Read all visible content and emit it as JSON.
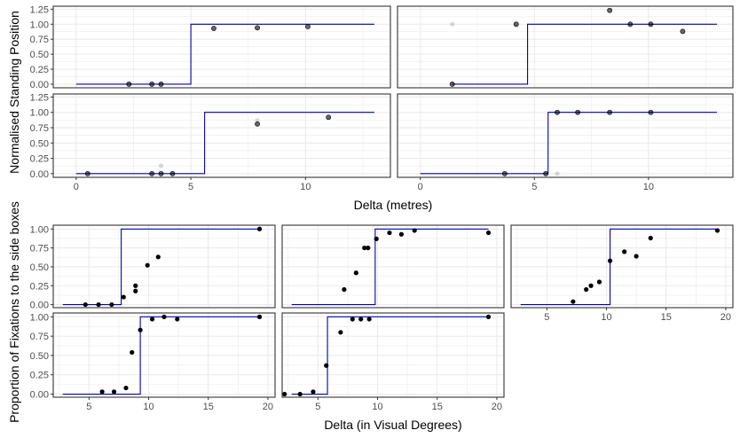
{
  "chart_data": [
    {
      "type": "scatter",
      "figure": "top",
      "xlabel": "Delta (metres)",
      "ylabel": "Normalised Standing Position",
      "xlim": [
        -1,
        13.7
      ],
      "ylim": [
        -0.06,
        1.3
      ],
      "xticks": [
        0,
        5,
        10
      ],
      "yticks": [
        0,
        0.25,
        0.5,
        0.75,
        1.0
      ],
      "ytick_labels": [
        "0.00",
        "0.25",
        "0.50",
        "0.75",
        "1.00",
        "1.25"
      ],
      "ytick_values": [
        0,
        0.25,
        0.5,
        0.75,
        1.0,
        1.25
      ],
      "grid": true,
      "panels": [
        {
          "step_threshold": 5.0,
          "step_xrange": [
            0,
            13
          ],
          "points": [
            {
              "x": 2.3,
              "y": 0
            },
            {
              "x": 3.3,
              "y": 0
            },
            {
              "x": 3.7,
              "y": 0
            },
            {
              "x": 6.0,
              "y": 0.93
            },
            {
              "x": 7.9,
              "y": 0.94
            },
            {
              "x": 10.1,
              "y": 0.96
            }
          ],
          "faint_points": []
        },
        {
          "step_threshold": 4.7,
          "step_xrange": [
            1.4,
            13
          ],
          "points": [
            {
              "x": 1.4,
              "y": 0
            },
            {
              "x": 4.2,
              "y": 1.0
            },
            {
              "x": 8.3,
              "y": 1.23
            },
            {
              "x": 9.2,
              "y": 1.0
            },
            {
              "x": 10.1,
              "y": 1.0
            },
            {
              "x": 11.5,
              "y": 0.88
            }
          ],
          "faint_points": [
            {
              "x": 1.4,
              "y": 1.0
            }
          ]
        },
        {
          "step_threshold": 5.6,
          "step_xrange": [
            0,
            13
          ],
          "points": [
            {
              "x": 0.5,
              "y": 0
            },
            {
              "x": 3.3,
              "y": 0
            },
            {
              "x": 3.7,
              "y": 0
            },
            {
              "x": 4.2,
              "y": 0
            },
            {
              "x": 7.9,
              "y": 0.81
            },
            {
              "x": 11.0,
              "y": 0.92
            }
          ],
          "faint_points": [
            {
              "x": 3.7,
              "y": 0.13
            },
            {
              "x": 7.9,
              "y": 0.87
            }
          ]
        },
        {
          "step_threshold": 5.6,
          "step_xrange": [
            0,
            13
          ],
          "points": [
            {
              "x": 3.7,
              "y": 0
            },
            {
              "x": 5.5,
              "y": 0
            },
            {
              "x": 6.0,
              "y": 1.0
            },
            {
              "x": 6.9,
              "y": 1.0
            },
            {
              "x": 8.3,
              "y": 1.0
            },
            {
              "x": 10.1,
              "y": 1.0
            }
          ],
          "faint_points": [
            {
              "x": 6.0,
              "y": 0
            }
          ]
        }
      ]
    },
    {
      "type": "scatter",
      "figure": "bottom",
      "xlabel": "Delta (in Visual Degrees)",
      "ylabel": "Proportion of Fixations to the side boxes",
      "xlim": [
        2.0,
        20.6
      ],
      "ylim": [
        -0.04,
        1.05
      ],
      "xticks": [
        5,
        10,
        15,
        20
      ],
      "ytick_labels": [
        "0.00",
        "0.25",
        "0.50",
        "0.75",
        "1.00"
      ],
      "ytick_values": [
        0,
        0.25,
        0.5,
        0.75,
        1.0
      ],
      "grid": true,
      "panels": [
        {
          "step_threshold": 7.7,
          "step_xrange": [
            2.8,
            19.3
          ],
          "points": [
            {
              "x": 4.7,
              "y": 0
            },
            {
              "x": 5.8,
              "y": 0
            },
            {
              "x": 6.9,
              "y": 0
            },
            {
              "x": 7.9,
              "y": 0.1
            },
            {
              "x": 8.9,
              "y": 0.18
            },
            {
              "x": 8.9,
              "y": 0.25
            },
            {
              "x": 9.9,
              "y": 0.52
            },
            {
              "x": 10.8,
              "y": 0.63
            },
            {
              "x": 19.3,
              "y": 1.0
            }
          ]
        },
        {
          "step_threshold": 9.8,
          "step_xrange": [
            2.8,
            19.3
          ],
          "points": [
            {
              "x": 7.2,
              "y": 0.2
            },
            {
              "x": 8.2,
              "y": 0.42
            },
            {
              "x": 8.9,
              "y": 0.75
            },
            {
              "x": 9.2,
              "y": 0.75
            },
            {
              "x": 9.9,
              "y": 0.87
            },
            {
              "x": 11.0,
              "y": 0.95
            },
            {
              "x": 12.0,
              "y": 0.93
            },
            {
              "x": 13.1,
              "y": 0.98
            },
            {
              "x": 19.3,
              "y": 0.95
            }
          ]
        },
        {
          "step_threshold": 10.3,
          "step_xrange": [
            2.8,
            19.3
          ],
          "points": [
            {
              "x": 7.2,
              "y": 0.04
            },
            {
              "x": 8.3,
              "y": 0.2
            },
            {
              "x": 8.7,
              "y": 0.25
            },
            {
              "x": 9.4,
              "y": 0.3
            },
            {
              "x": 10.3,
              "y": 0.58
            },
            {
              "x": 11.5,
              "y": 0.7
            },
            {
              "x": 12.5,
              "y": 0.64
            },
            {
              "x": 13.7,
              "y": 0.88
            },
            {
              "x": 19.3,
              "y": 0.98
            }
          ]
        },
        {
          "step_threshold": 9.3,
          "step_xrange": [
            2.8,
            19.3
          ],
          "points": [
            {
              "x": 6.1,
              "y": 0.03
            },
            {
              "x": 7.1,
              "y": 0.03
            },
            {
              "x": 8.1,
              "y": 0.08
            },
            {
              "x": 8.6,
              "y": 0.54
            },
            {
              "x": 9.3,
              "y": 0.83
            },
            {
              "x": 10.3,
              "y": 0.97
            },
            {
              "x": 11.3,
              "y": 1.0
            },
            {
              "x": 12.4,
              "y": 0.97
            },
            {
              "x": 19.3,
              "y": 1.0
            }
          ]
        },
        {
          "step_threshold": 5.8,
          "step_xrange": [
            2.8,
            19.3
          ],
          "points": [
            {
              "x": 2.2,
              "y": 0
            },
            {
              "x": 3.5,
              "y": 0
            },
            {
              "x": 4.6,
              "y": 0.03
            },
            {
              "x": 5.7,
              "y": 0.37
            },
            {
              "x": 6.9,
              "y": 0.8
            },
            {
              "x": 7.9,
              "y": 0.97
            },
            {
              "x": 8.6,
              "y": 0.97
            },
            {
              "x": 9.3,
              "y": 0.97
            },
            {
              "x": 19.3,
              "y": 1.0
            }
          ]
        }
      ]
    }
  ],
  "colors": {
    "step_line": "#0000b3",
    "point_fill": "#000000",
    "grid": "#ebebeb",
    "panel_border": "#333333"
  }
}
